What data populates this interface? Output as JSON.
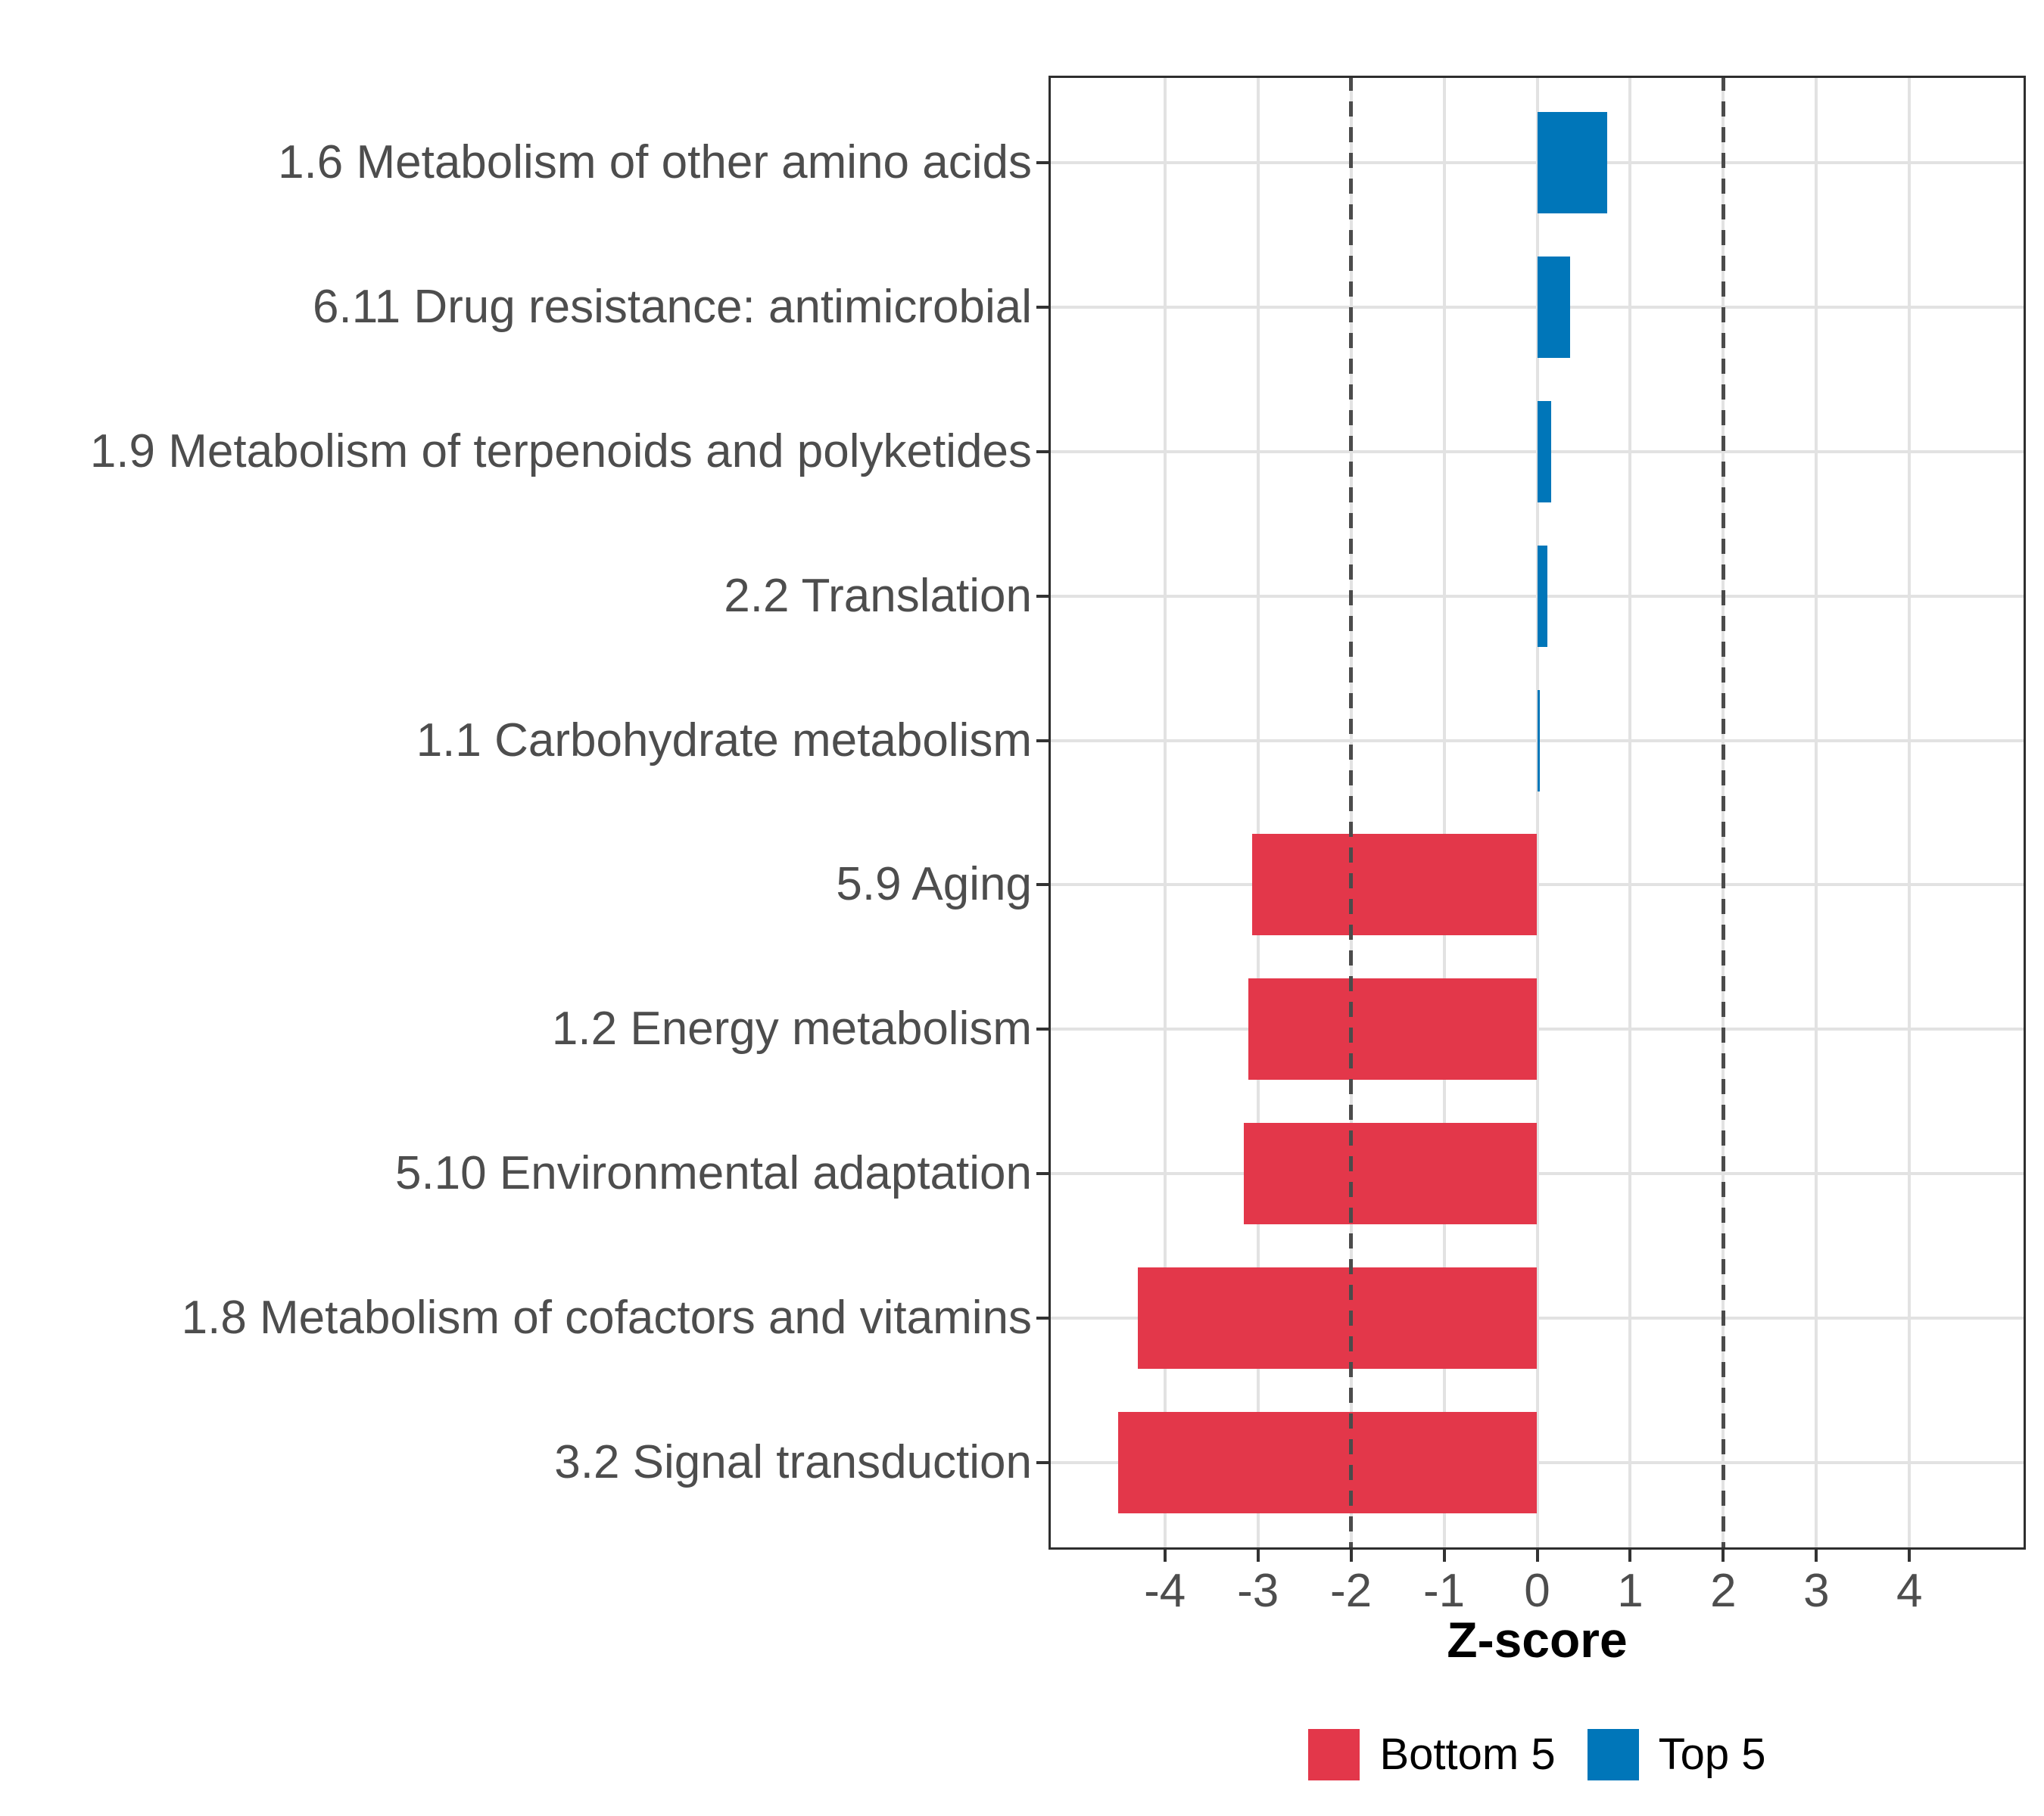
{
  "chart_data": {
    "type": "bar",
    "orientation": "horizontal",
    "xlabel": "Z-score",
    "ylabel": "",
    "xlim": [
      -5.25,
      5.25
    ],
    "x_ticks": [
      -4,
      -3,
      -2,
      -1,
      0,
      1,
      2,
      3,
      4
    ],
    "grid": true,
    "threshold_lines": [
      -2,
      2
    ],
    "legend_position": "bottom",
    "categories": [
      "1.6 Metabolism of other amino acids",
      "6.11 Drug resistance: antimicrobial",
      "1.9 Metabolism of terpenoids and polyketides",
      "2.2 Translation",
      "1.1 Carbohydrate metabolism",
      "5.9 Aging",
      "1.2 Energy metabolism",
      "5.10 Environmental adaptation",
      "1.8 Metabolism of cofactors and vitamins",
      "3.2 Signal transduction"
    ],
    "values": [
      0.75,
      0.35,
      0.15,
      0.11,
      0.03,
      -3.06,
      -3.1,
      -3.15,
      -4.29,
      -4.5
    ],
    "groups": [
      "Top 5",
      "Top 5",
      "Top 5",
      "Top 5",
      "Top 5",
      "Bottom 5",
      "Bottom 5",
      "Bottom 5",
      "Bottom 5",
      "Bottom 5"
    ],
    "series_colors": {
      "Bottom 5": "#e3374a",
      "Top 5": "#0076b9"
    }
  },
  "legend": {
    "items": [
      {
        "label": "Bottom 5",
        "color": "#e3374a"
      },
      {
        "label": "Top 5",
        "color": "#0076b9"
      }
    ]
  },
  "style_colors": {
    "gridline": "#e2e2e2",
    "panel_border": "#2e2e2e",
    "threshold_dash": "#4b4b4b",
    "axis_text": "#4d4d4d",
    "tick_mark": "#333333"
  }
}
